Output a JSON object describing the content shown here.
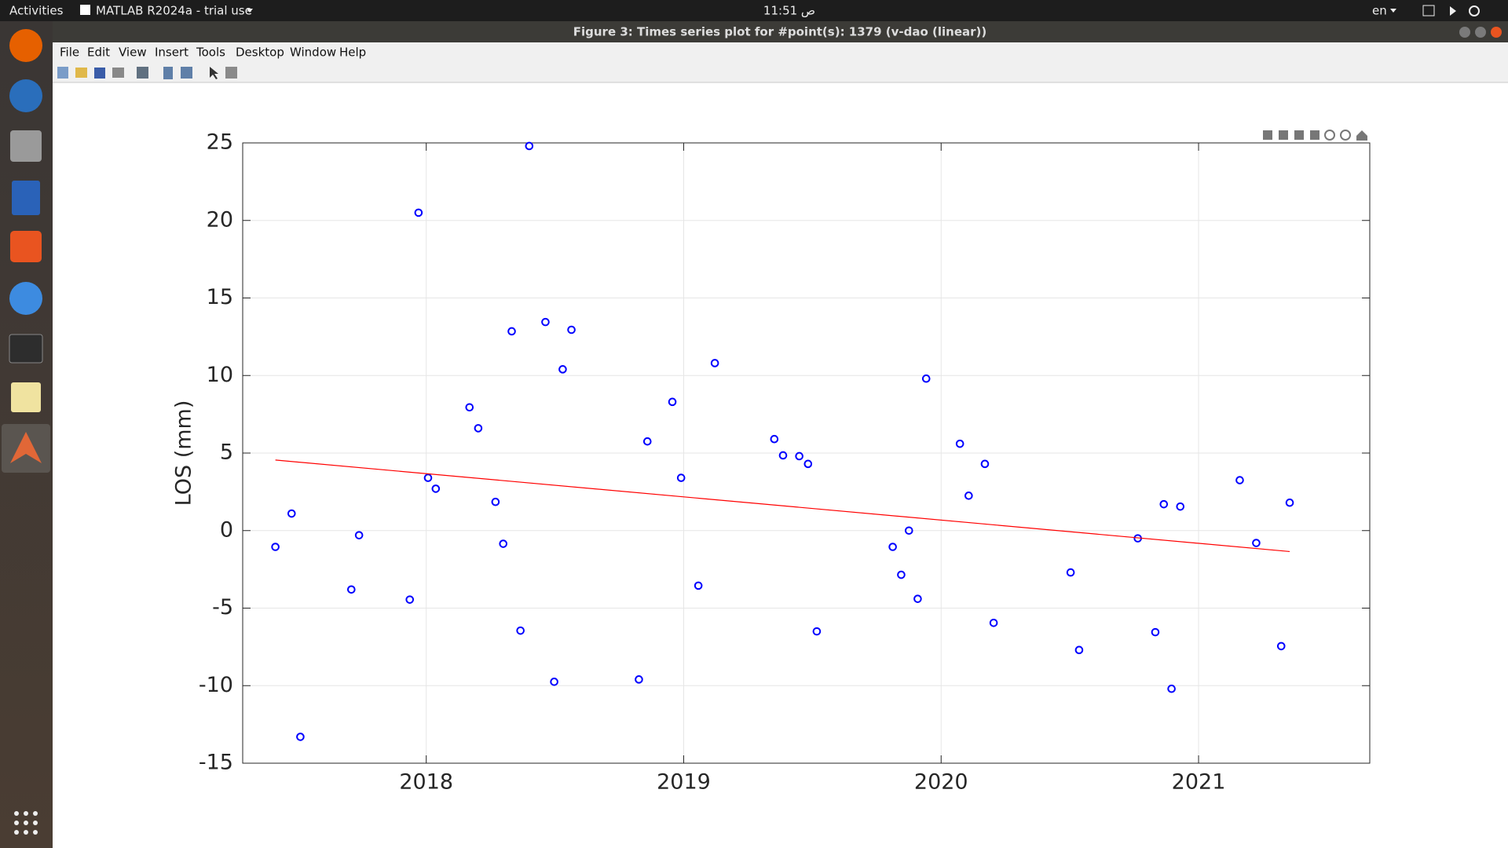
{
  "topbar": {
    "activities": "Activities",
    "app": "MATLAB R2024a - trial use",
    "clock": "11:51 ص",
    "lang": "en"
  },
  "window": {
    "title": "Figure 3:  Times series plot for #point(s): 1379 (v-dao (linear))",
    "menu": [
      "File",
      "Edit",
      "View",
      "Insert",
      "Tools",
      "Desktop",
      "Window",
      "Help"
    ]
  },
  "chart_data": {
    "type": "scatter",
    "y_label": "LOS (mm)",
    "xlim": [
      2017.287,
      2021.665
    ],
    "xticks": [
      2018,
      2019,
      2020,
      2021
    ],
    "ylim": [
      -15,
      25
    ],
    "yticks": [
      -15,
      -10,
      -5,
      0,
      5,
      10,
      15,
      20,
      25
    ],
    "grid": true,
    "series": [
      {
        "type": "scatter",
        "color": "#0000ff",
        "x": [
          2017.414,
          2017.477,
          2017.511,
          2017.709,
          2017.739,
          2017.936,
          2017.97,
          2018.007,
          2018.037,
          2018.168,
          2018.202,
          2018.269,
          2018.299,
          2018.332,
          2018.366,
          2018.4,
          2018.463,
          2018.497,
          2018.53,
          2018.564,
          2018.826,
          2018.859,
          2018.956,
          2018.99,
          2019.057,
          2019.121,
          2019.352,
          2019.386,
          2019.449,
          2019.483,
          2019.517,
          2019.812,
          2019.845,
          2019.875,
          2019.909,
          2019.942,
          2020.073,
          2020.107,
          2020.17,
          2020.204,
          2020.503,
          2020.536,
          2020.764,
          2020.832,
          2020.865,
          2020.895,
          2020.929,
          2021.16,
          2021.224,
          2021.321,
          2021.354
        ],
        "values": [
          -1.05,
          1.1,
          -13.3,
          -3.8,
          -0.3,
          -4.45,
          20.5,
          3.4,
          2.7,
          7.95,
          6.6,
          1.85,
          -0.85,
          12.85,
          -6.45,
          24.8,
          13.45,
          -9.75,
          10.4,
          12.95,
          -9.6,
          5.75,
          8.3,
          3.4,
          -3.55,
          10.8,
          5.9,
          4.85,
          4.8,
          4.3,
          -6.5,
          -1.05,
          -2.85,
          0,
          -4.4,
          9.8,
          5.6,
          2.25,
          4.3,
          -5.95,
          -2.7,
          -7.7,
          -0.5,
          -6.55,
          1.7,
          -10.2,
          1.55,
          3.25,
          -0.8,
          -7.45,
          1.8
        ]
      },
      {
        "type": "line",
        "color": "#ff0000",
        "x": [
          2017.414,
          2021.354
        ],
        "values": [
          4.55,
          -1.35
        ]
      }
    ]
  }
}
